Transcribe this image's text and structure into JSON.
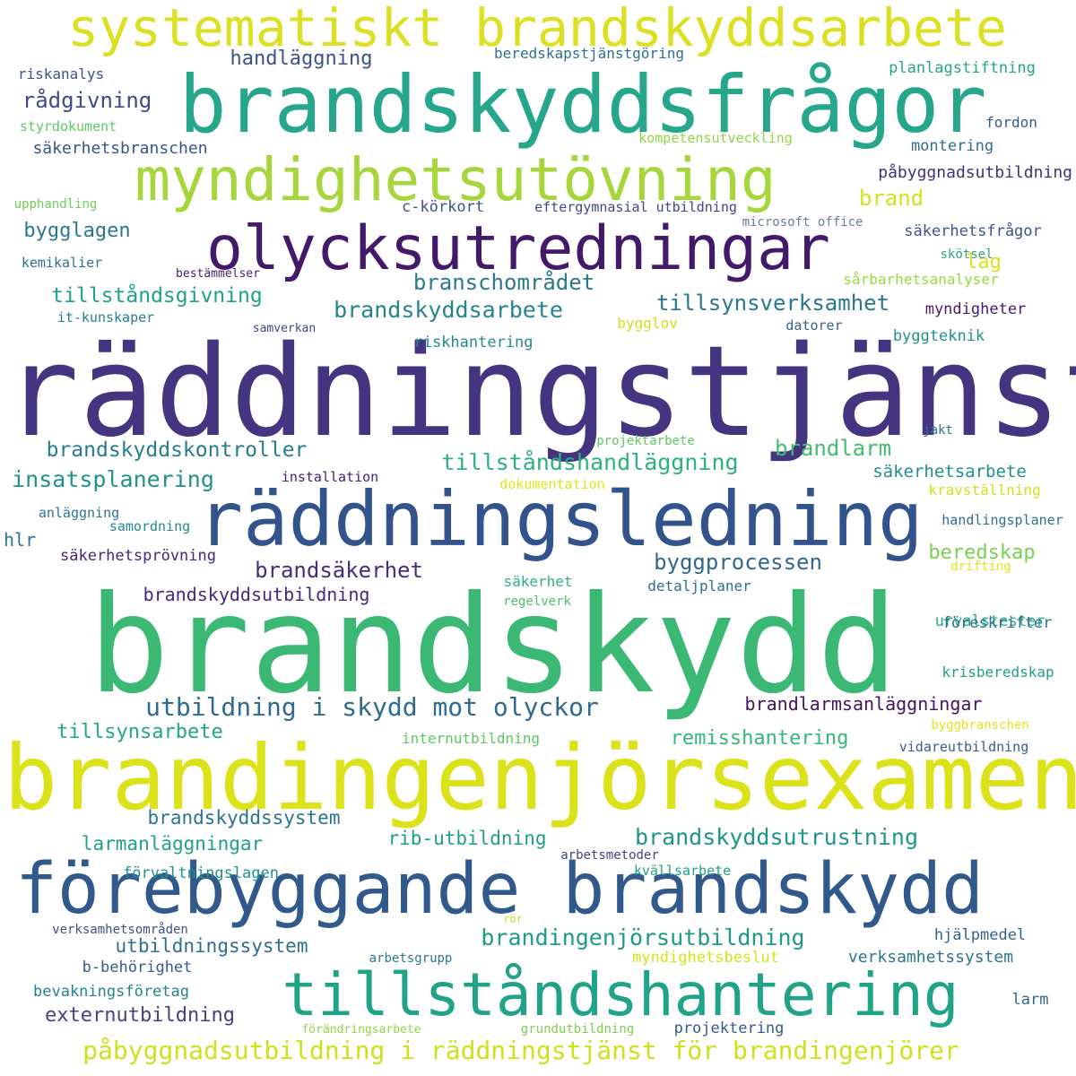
{
  "words": [
    {
      "text": "räddningstjänst",
      "color": "#45347f"
    },
    {
      "text": "brandskydd",
      "color": "#3bb874"
    },
    {
      "text": "brandingenjörsexamen",
      "color": "#dce219"
    },
    {
      "text": "brandskyddsfrågor",
      "color": "#26a68a"
    },
    {
      "text": "räddningsledning",
      "color": "#33538c"
    },
    {
      "text": "förebyggande brandskydd",
      "color": "#31598c"
    },
    {
      "text": "tillståndshantering",
      "color": "#20a386"
    },
    {
      "text": "olycksutredningar",
      "color": "#43196a"
    },
    {
      "text": "myndighetsutövning",
      "color": "#a6d63b"
    },
    {
      "text": "systematiskt brandskyddsarbete",
      "color": "#dbe023"
    },
    {
      "text": "påbyggnadsutbildning i räddningstjänst för brandingenjörer",
      "color": "#cde11d"
    },
    {
      "text": "utbildning i skydd mot olyckor",
      "color": "#2f6b8e"
    },
    {
      "text": "brandingenjörsutbildning",
      "color": "#1f998a"
    },
    {
      "text": "brandskyddsutrustning",
      "color": "#1f958b"
    },
    {
      "text": "tillståndshandläggning",
      "color": "#2db27d"
    },
    {
      "text": "brandskyddsarbete",
      "color": "#25848e"
    },
    {
      "text": "tillsynsverksamhet",
      "color": "#2a768e"
    },
    {
      "text": "branschområdet",
      "color": "#2a788e"
    },
    {
      "text": "brandskyddskontroller",
      "color": "#287d8e"
    },
    {
      "text": "insatsplanering",
      "color": "#20928c"
    },
    {
      "text": "tillståndsgivning",
      "color": "#1fa287"
    },
    {
      "text": "byggprocessen",
      "color": "#31688e"
    },
    {
      "text": "brandsäkerhet",
      "color": "#472d7b"
    },
    {
      "text": "brandskyddsutbildning",
      "color": "#482979"
    },
    {
      "text": "remisshantering",
      "color": "#35b779"
    },
    {
      "text": "tillsynsarbete",
      "color": "#22a884"
    },
    {
      "text": "brandskyddssystem",
      "color": "#2b748e"
    },
    {
      "text": "larmanläggningar",
      "color": "#1fa188"
    },
    {
      "text": "rib-utbildning",
      "color": "#1f9e89"
    },
    {
      "text": "utbildningssystem",
      "color": "#2e6e8e"
    },
    {
      "text": "externutbildning",
      "color": "#414487"
    },
    {
      "text": "brandlarmsanläggningar",
      "color": "#471164"
    },
    {
      "text": "brandlarm",
      "color": "#42be71"
    },
    {
      "text": "beredskap",
      "color": "#7ad151"
    },
    {
      "text": "handläggning",
      "color": "#3b528b"
    },
    {
      "text": "rådgivning",
      "color": "#3e4a89"
    },
    {
      "text": "bygglagen",
      "color": "#2a788e"
    },
    {
      "text": "brand",
      "color": "#d2e21b"
    },
    {
      "text": "lag",
      "color": "#d8e219"
    },
    {
      "text": "hlr",
      "color": "#2c718e"
    },
    {
      "text": "riskanalys",
      "color": "#3a548c"
    },
    {
      "text": "styrdokument",
      "color": "#5ec962"
    },
    {
      "text": "säkerhetsbranschen",
      "color": "#39558c"
    },
    {
      "text": "upphandling",
      "color": "#6ece58"
    },
    {
      "text": "kemikalier",
      "color": "#2c718e"
    },
    {
      "text": "bestämmelser",
      "color": "#482071"
    },
    {
      "text": "it-kunskaper",
      "color": "#26828e"
    },
    {
      "text": "samverkan",
      "color": "#3f4788"
    },
    {
      "text": "riskhantering",
      "color": "#23898e"
    },
    {
      "text": "beredskapstjänstgöring",
      "color": "#2d708e"
    },
    {
      "text": "kompetensutveckling",
      "color": "#8fd744"
    },
    {
      "text": "c-körkort",
      "color": "#3b528b"
    },
    {
      "text": "eftergymnasial utbildning",
      "color": "#404688"
    },
    {
      "text": "microsoft office",
      "color": "#6a7d9e"
    },
    {
      "text": "planlagstiftning",
      "color": "#22a785"
    },
    {
      "text": "fordon",
      "color": "#38598c"
    },
    {
      "text": "montering",
      "color": "#2e6f8e"
    },
    {
      "text": "påbyggnadsutbildning",
      "color": "#46307e"
    },
    {
      "text": "säkerhetsfrågor",
      "color": "#3a548c"
    },
    {
      "text": "skötsel",
      "color": "#35a37c"
    },
    {
      "text": "sårbarhetsanalyser",
      "color": "#9bd93c"
    },
    {
      "text": "myndigheter",
      "color": "#481b6d"
    },
    {
      "text": "bygglov",
      "color": "#cde11d"
    },
    {
      "text": "datorer",
      "color": "#33638d"
    },
    {
      "text": "byggteknik",
      "color": "#21918c"
    },
    {
      "text": "projektarbete",
      "color": "#5ec962"
    },
    {
      "text": "jakt",
      "color": "#2c728e"
    },
    {
      "text": "säkerhetsarbete",
      "color": "#21908d"
    },
    {
      "text": "installation",
      "color": "#482173"
    },
    {
      "text": "dokumentation",
      "color": "#e5e419"
    },
    {
      "text": "kravställning",
      "color": "#d0e11c"
    },
    {
      "text": "anläggning",
      "color": "#2a788e"
    },
    {
      "text": "samordning",
      "color": "#23888e"
    },
    {
      "text": "handlingsplaner",
      "color": "#2d708e"
    },
    {
      "text": "säkerhetsprövning",
      "color": "#482576"
    },
    {
      "text": "drifting",
      "color": "#e2e418"
    },
    {
      "text": "säkerhet",
      "color": "#2db27d"
    },
    {
      "text": "regelverk",
      "color": "#4ac16d"
    },
    {
      "text": "detaljplaner",
      "color": "#2e6e8e"
    },
    {
      "text": "urvalstester",
      "color": "#25ac82"
    },
    {
      "text": "föreskrifter",
      "color": "#2c728e"
    },
    {
      "text": "krisberedskap",
      "color": "#1f9f88"
    },
    {
      "text": "byggbranschen",
      "color": "#e5e419"
    },
    {
      "text": "internutbildning",
      "color": "#5ec962"
    },
    {
      "text": "vidareutbildning",
      "color": "#355e8d"
    },
    {
      "text": "arbetsmetoder",
      "color": "#433e85"
    },
    {
      "text": "förvaltningslagen",
      "color": "#21918c"
    },
    {
      "text": "kvällsarbete",
      "color": "#20a386"
    },
    {
      "text": "verksamhetsområden",
      "color": "#3b528b"
    },
    {
      "text": "rör",
      "color": "#c2df23"
    },
    {
      "text": "hjälpmedel",
      "color": "#33638d"
    },
    {
      "text": "verksamhetssystem",
      "color": "#2a788e"
    },
    {
      "text": "arbetsgrupp",
      "color": "#2a788e"
    },
    {
      "text": "myndighetsbeslut",
      "color": "#d8e219"
    },
    {
      "text": "b-behörighet",
      "color": "#38598c"
    },
    {
      "text": "bevakningsföretag",
      "color": "#25838e"
    },
    {
      "text": "larm",
      "color": "#31688e"
    },
    {
      "text": "förändringsarbete",
      "color": "#8fd744"
    },
    {
      "text": "grundutbildning",
      "color": "#7ad151"
    },
    {
      "text": "projektering",
      "color": "#365c8d"
    }
  ]
}
